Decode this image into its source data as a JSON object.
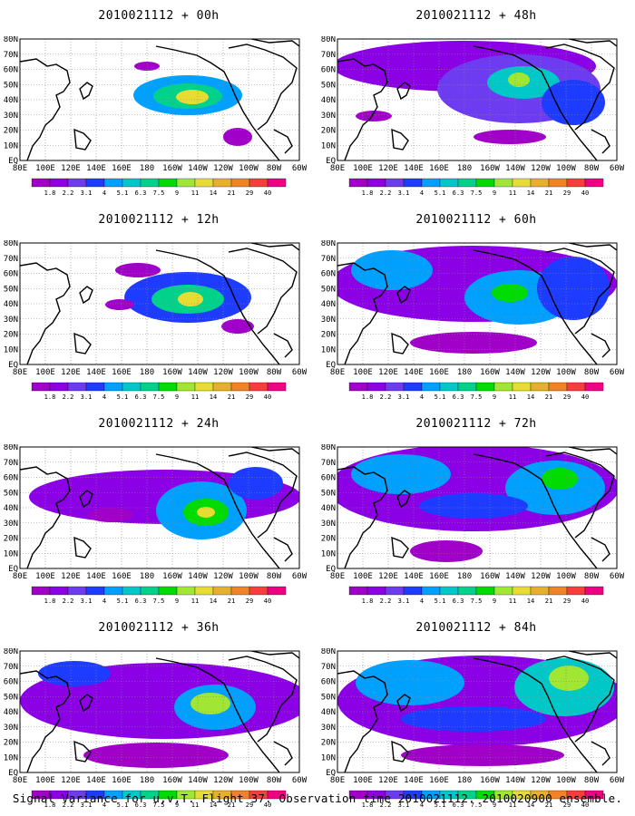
{
  "panels": [
    {
      "title": "2010021112 + 00h"
    },
    {
      "title": "2010021112 + 48h"
    },
    {
      "title": "2010021112 + 12h"
    },
    {
      "title": "2010021112 + 60h"
    },
    {
      "title": "2010021112 + 24h"
    },
    {
      "title": "2010021112 + 72h"
    },
    {
      "title": "2010021112 + 36h"
    },
    {
      "title": "2010021112 + 84h"
    }
  ],
  "lat_labels": [
    "80N",
    "70N",
    "60N",
    "50N",
    "40N",
    "30N",
    "20N",
    "10N",
    "EQ"
  ],
  "lon_labels": [
    "80E",
    "100E",
    "120E",
    "140E",
    "160E",
    "180",
    "160W",
    "140W",
    "120W",
    "100W",
    "80W",
    "60W"
  ],
  "legend": {
    "values": [
      "1.8",
      "2.2",
      "3.1",
      "4",
      "5.1",
      "6.3",
      "7.5",
      "9",
      "11",
      "14",
      "21",
      "29",
      "40"
    ],
    "colors": [
      "#a000c8",
      "#8c00e6",
      "#6e3cf0",
      "#1e3cff",
      "#00a0ff",
      "#00c8c8",
      "#00d28c",
      "#00dc00",
      "#a0e632",
      "#e6dc32",
      "#e6af2d",
      "#f08228",
      "#fa3c3c",
      "#f00082"
    ]
  },
  "footer": "Signal Variance for u,v,T. Flight 37. Observation time 2010021112. 2010020900 ensemble."
}
